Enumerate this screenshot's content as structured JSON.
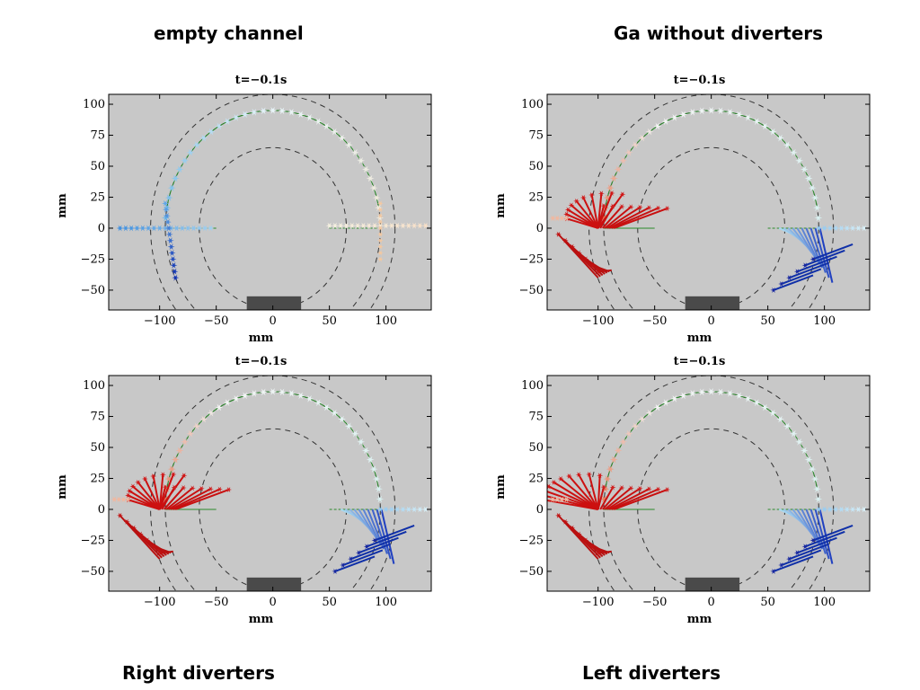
{
  "captions": [
    "empty channel",
    "Ga without diverters",
    "Right diverters",
    "Left diverters"
  ],
  "chart_data": [
    {
      "type": "scatter",
      "title": "t=−0.1s",
      "caption": "empty channel",
      "xlabel": "mm",
      "ylabel": "mm",
      "xlim": [
        -145,
        140
      ],
      "ylim": [
        -66,
        108
      ],
      "xticks": [
        -100,
        -50,
        0,
        50,
        100
      ],
      "yticks": [
        -50,
        -25,
        0,
        25,
        50,
        75,
        100
      ],
      "xtick_labels": [
        "−100",
        "−50",
        "0",
        "50",
        "100"
      ],
      "ytick_labels": [
        "−50",
        "−25",
        "0",
        "25",
        "50",
        "75",
        "100"
      ],
      "background": "#c8c8c8",
      "circles_mm": [
        65,
        95,
        108
      ],
      "block": {
        "x": [
          -23,
          25
        ],
        "y": [
          -66,
          -55
        ],
        "color": "#4a4a4a"
      },
      "variant": "empty"
    },
    {
      "type": "scatter",
      "title": "t=−0.1s",
      "caption": "Ga without diverters",
      "xlabel": "mm",
      "ylabel": "mm",
      "xlim": [
        -145,
        140
      ],
      "ylim": [
        -66,
        108
      ],
      "xticks": [
        -100,
        -50,
        0,
        50,
        100
      ],
      "yticks": [
        -50,
        -25,
        0,
        25,
        50,
        75,
        100
      ],
      "xtick_labels": [
        "−100",
        "−50",
        "0",
        "50",
        "100"
      ],
      "ytick_labels": [
        "−50",
        "−25",
        "0",
        "25",
        "50",
        "75",
        "100"
      ],
      "background": "#c8c8c8",
      "circles_mm": [
        65,
        95,
        108
      ],
      "block": {
        "x": [
          -23,
          25
        ],
        "y": [
          -66,
          -55
        ],
        "color": "#4a4a4a"
      },
      "variant": "ga"
    },
    {
      "type": "scatter",
      "title": "t=−0.1s",
      "caption": "Right diverters",
      "xlabel": "mm",
      "ylabel": "mm",
      "xlim": [
        -145,
        140
      ],
      "ylim": [
        -66,
        108
      ],
      "xticks": [
        -100,
        -50,
        0,
        50,
        100
      ],
      "yticks": [
        -50,
        -25,
        0,
        25,
        50,
        75,
        100
      ],
      "xtick_labels": [
        "−100",
        "−50",
        "0",
        "50",
        "100"
      ],
      "ytick_labels": [
        "−50",
        "−25",
        "0",
        "25",
        "50",
        "75",
        "100"
      ],
      "background": "#c8c8c8",
      "circles_mm": [
        65,
        95,
        108
      ],
      "block": {
        "x": [
          -23,
          25
        ],
        "y": [
          -66,
          -55
        ],
        "color": "#4a4a4a"
      },
      "variant": "right"
    },
    {
      "type": "scatter",
      "title": "t=−0.1s",
      "caption": "Left diverters",
      "xlabel": "mm",
      "ylabel": "mm",
      "xlim": [
        -145,
        140
      ],
      "ylim": [
        -66,
        108
      ],
      "xticks": [
        -100,
        -50,
        0,
        50,
        100
      ],
      "yticks": [
        -50,
        -25,
        0,
        25,
        50,
        75,
        100
      ],
      "xtick_labels": [
        "−100",
        "−50",
        "0",
        "50",
        "100"
      ],
      "ytick_labels": [
        "−50",
        "−25",
        "0",
        "25",
        "50",
        "75",
        "100"
      ],
      "background": "#c8c8c8",
      "circles_mm": [
        65,
        95,
        108
      ],
      "block": {
        "x": [
          -23,
          25
        ],
        "y": [
          -66,
          -55
        ],
        "color": "#4a4a4a"
      },
      "variant": "left"
    }
  ]
}
